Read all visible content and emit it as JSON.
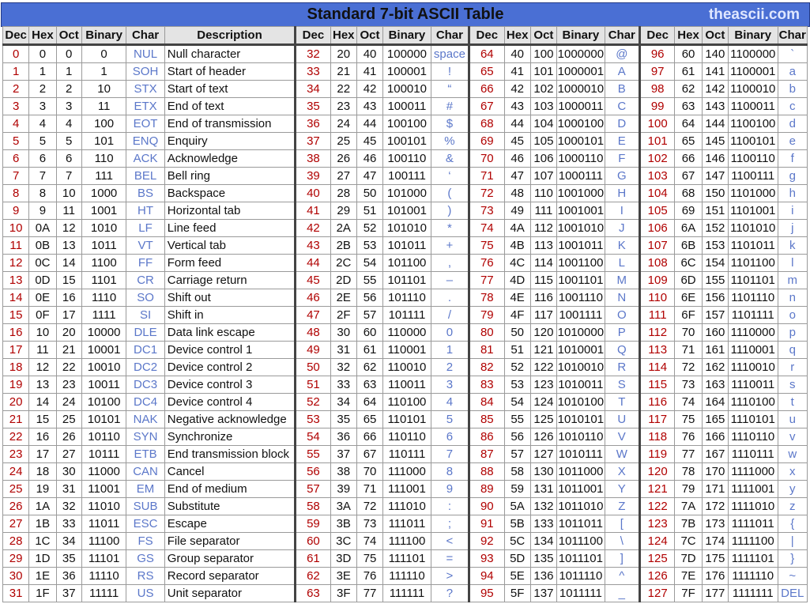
{
  "title": "Standard 7-bit ASCII Table",
  "site": "theascii.com",
  "headers": {
    "dec": "Dec",
    "hex": "Hex",
    "oct": "Oct",
    "binary": "Binary",
    "char": "Char",
    "description": "Description"
  },
  "colors": {
    "banner": "#4a6fd4",
    "dec": "#b00000",
    "char": "#5b77c9",
    "header_bg": "#e4e4e4"
  },
  "rows": [
    [
      [
        "0",
        "0",
        "0",
        "0",
        "NUL",
        "Null character"
      ],
      [
        "32",
        "20",
        "40",
        "100000",
        "space"
      ],
      [
        "64",
        "40",
        "100",
        "1000000",
        "@"
      ],
      [
        "96",
        "60",
        "140",
        "1100000",
        "`"
      ]
    ],
    [
      [
        "1",
        "1",
        "1",
        "1",
        "SOH",
        "Start of header"
      ],
      [
        "33",
        "21",
        "41",
        "100001",
        "!"
      ],
      [
        "65",
        "41",
        "101",
        "1000001",
        "A"
      ],
      [
        "97",
        "61",
        "141",
        "1100001",
        "a"
      ]
    ],
    [
      [
        "2",
        "2",
        "2",
        "10",
        "STX",
        "Start of text"
      ],
      [
        "34",
        "22",
        "42",
        "100010",
        "“"
      ],
      [
        "66",
        "42",
        "102",
        "1000010",
        "B"
      ],
      [
        "98",
        "62",
        "142",
        "1100010",
        "b"
      ]
    ],
    [
      [
        "3",
        "3",
        "3",
        "11",
        "ETX",
        "End of text"
      ],
      [
        "35",
        "23",
        "43",
        "100011",
        "#"
      ],
      [
        "67",
        "43",
        "103",
        "1000011",
        "C"
      ],
      [
        "99",
        "63",
        "143",
        "1100011",
        "c"
      ]
    ],
    [
      [
        "4",
        "4",
        "4",
        "100",
        "EOT",
        "End of transmission"
      ],
      [
        "36",
        "24",
        "44",
        "100100",
        "$"
      ],
      [
        "68",
        "44",
        "104",
        "1000100",
        "D"
      ],
      [
        "100",
        "64",
        "144",
        "1100100",
        "d"
      ]
    ],
    [
      [
        "5",
        "5",
        "5",
        "101",
        "ENQ",
        "Enquiry"
      ],
      [
        "37",
        "25",
        "45",
        "100101",
        "%"
      ],
      [
        "69",
        "45",
        "105",
        "1000101",
        "E"
      ],
      [
        "101",
        "65",
        "145",
        "1100101",
        "e"
      ]
    ],
    [
      [
        "6",
        "6",
        "6",
        "110",
        "ACK",
        "Acknowledge"
      ],
      [
        "38",
        "26",
        "46",
        "100110",
        "&"
      ],
      [
        "70",
        "46",
        "106",
        "1000110",
        "F"
      ],
      [
        "102",
        "66",
        "146",
        "1100110",
        "f"
      ]
    ],
    [
      [
        "7",
        "7",
        "7",
        "111",
        "BEL",
        "Bell ring"
      ],
      [
        "39",
        "27",
        "47",
        "100111",
        "‘"
      ],
      [
        "71",
        "47",
        "107",
        "1000111",
        "G"
      ],
      [
        "103",
        "67",
        "147",
        "1100111",
        "g"
      ]
    ],
    [
      [
        "8",
        "8",
        "10",
        "1000",
        "BS",
        "Backspace"
      ],
      [
        "40",
        "28",
        "50",
        "101000",
        "("
      ],
      [
        "72",
        "48",
        "110",
        "1001000",
        "H"
      ],
      [
        "104",
        "68",
        "150",
        "1101000",
        "h"
      ]
    ],
    [
      [
        "9",
        "9",
        "11",
        "1001",
        "HT",
        "Horizontal tab"
      ],
      [
        "41",
        "29",
        "51",
        "101001",
        ")"
      ],
      [
        "73",
        "49",
        "111",
        "1001001",
        "I"
      ],
      [
        "105",
        "69",
        "151",
        "1101001",
        "i"
      ]
    ],
    [
      [
        "10",
        "0A",
        "12",
        "1010",
        "LF",
        "Line feed"
      ],
      [
        "42",
        "2A",
        "52",
        "101010",
        "*"
      ],
      [
        "74",
        "4A",
        "112",
        "1001010",
        "J"
      ],
      [
        "106",
        "6A",
        "152",
        "1101010",
        "j"
      ]
    ],
    [
      [
        "11",
        "0B",
        "13",
        "1011",
        "VT",
        "Vertical tab"
      ],
      [
        "43",
        "2B",
        "53",
        "101011",
        "+"
      ],
      [
        "75",
        "4B",
        "113",
        "1001011",
        "K"
      ],
      [
        "107",
        "6B",
        "153",
        "1101011",
        "k"
      ]
    ],
    [
      [
        "12",
        "0C",
        "14",
        "1100",
        "FF",
        "Form feed"
      ],
      [
        "44",
        "2C",
        "54",
        "101100",
        ","
      ],
      [
        "76",
        "4C",
        "114",
        "1001100",
        "L"
      ],
      [
        "108",
        "6C",
        "154",
        "1101100",
        "l"
      ]
    ],
    [
      [
        "13",
        "0D",
        "15",
        "1101",
        "CR",
        "Carriage return"
      ],
      [
        "45",
        "2D",
        "55",
        "101101",
        "–"
      ],
      [
        "77",
        "4D",
        "115",
        "1001101",
        "M"
      ],
      [
        "109",
        "6D",
        "155",
        "1101101",
        "m"
      ]
    ],
    [
      [
        "14",
        "0E",
        "16",
        "1110",
        "SO",
        "Shift out"
      ],
      [
        "46",
        "2E",
        "56",
        "101110",
        "."
      ],
      [
        "78",
        "4E",
        "116",
        "1001110",
        "N"
      ],
      [
        "110",
        "6E",
        "156",
        "1101110",
        "n"
      ]
    ],
    [
      [
        "15",
        "0F",
        "17",
        "1111",
        "SI",
        "Shift in"
      ],
      [
        "47",
        "2F",
        "57",
        "101111",
        "/"
      ],
      [
        "79",
        "4F",
        "117",
        "1001111",
        "O"
      ],
      [
        "111",
        "6F",
        "157",
        "1101111",
        "o"
      ]
    ],
    [
      [
        "16",
        "10",
        "20",
        "10000",
        "DLE",
        "Data link escape"
      ],
      [
        "48",
        "30",
        "60",
        "110000",
        "0"
      ],
      [
        "80",
        "50",
        "120",
        "1010000",
        "P"
      ],
      [
        "112",
        "70",
        "160",
        "1110000",
        "p"
      ]
    ],
    [
      [
        "17",
        "11",
        "21",
        "10001",
        "DC1",
        "Device control 1"
      ],
      [
        "49",
        "31",
        "61",
        "110001",
        "1"
      ],
      [
        "81",
        "51",
        "121",
        "1010001",
        "Q"
      ],
      [
        "113",
        "71",
        "161",
        "1110001",
        "q"
      ]
    ],
    [
      [
        "18",
        "12",
        "22",
        "10010",
        "DC2",
        "Device control 2"
      ],
      [
        "50",
        "32",
        "62",
        "110010",
        "2"
      ],
      [
        "82",
        "52",
        "122",
        "1010010",
        "R"
      ],
      [
        "114",
        "72",
        "162",
        "1110010",
        "r"
      ]
    ],
    [
      [
        "19",
        "13",
        "23",
        "10011",
        "DC3",
        "Device control 3"
      ],
      [
        "51",
        "33",
        "63",
        "110011",
        "3"
      ],
      [
        "83",
        "53",
        "123",
        "1010011",
        "S"
      ],
      [
        "115",
        "73",
        "163",
        "1110011",
        "s"
      ]
    ],
    [
      [
        "20",
        "14",
        "24",
        "10100",
        "DC4",
        "Device control 4"
      ],
      [
        "52",
        "34",
        "64",
        "110100",
        "4"
      ],
      [
        "84",
        "54",
        "124",
        "1010100",
        "T"
      ],
      [
        "116",
        "74",
        "164",
        "1110100",
        "t"
      ]
    ],
    [
      [
        "21",
        "15",
        "25",
        "10101",
        "NAK",
        "Negative acknowledge"
      ],
      [
        "53",
        "35",
        "65",
        "110101",
        "5"
      ],
      [
        "85",
        "55",
        "125",
        "1010101",
        "U"
      ],
      [
        "117",
        "75",
        "165",
        "1110101",
        "u"
      ]
    ],
    [
      [
        "22",
        "16",
        "26",
        "10110",
        "SYN",
        "Synchronize"
      ],
      [
        "54",
        "36",
        "66",
        "110110",
        "6"
      ],
      [
        "86",
        "56",
        "126",
        "1010110",
        "V"
      ],
      [
        "118",
        "76",
        "166",
        "1110110",
        "v"
      ]
    ],
    [
      [
        "23",
        "17",
        "27",
        "10111",
        "ETB",
        "End transmission block"
      ],
      [
        "55",
        "37",
        "67",
        "110111",
        "7"
      ],
      [
        "87",
        "57",
        "127",
        "1010111",
        "W"
      ],
      [
        "119",
        "77",
        "167",
        "1110111",
        "w"
      ]
    ],
    [
      [
        "24",
        "18",
        "30",
        "11000",
        "CAN",
        "Cancel"
      ],
      [
        "56",
        "38",
        "70",
        "111000",
        "8"
      ],
      [
        "88",
        "58",
        "130",
        "1011000",
        "X"
      ],
      [
        "120",
        "78",
        "170",
        "1111000",
        "x"
      ]
    ],
    [
      [
        "25",
        "19",
        "31",
        "11001",
        "EM",
        "End of medium"
      ],
      [
        "57",
        "39",
        "71",
        "111001",
        "9"
      ],
      [
        "89",
        "59",
        "131",
        "1011001",
        "Y"
      ],
      [
        "121",
        "79",
        "171",
        "1111001",
        "y"
      ]
    ],
    [
      [
        "26",
        "1A",
        "32",
        "11010",
        "SUB",
        "Substitute"
      ],
      [
        "58",
        "3A",
        "72",
        "111010",
        ":"
      ],
      [
        "90",
        "5A",
        "132",
        "1011010",
        "Z"
      ],
      [
        "122",
        "7A",
        "172",
        "1111010",
        "z"
      ]
    ],
    [
      [
        "27",
        "1B",
        "33",
        "11011",
        "ESC",
        "Escape"
      ],
      [
        "59",
        "3B",
        "73",
        "111011",
        ";"
      ],
      [
        "91",
        "5B",
        "133",
        "1011011",
        "["
      ],
      [
        "123",
        "7B",
        "173",
        "1111011",
        "{"
      ]
    ],
    [
      [
        "28",
        "1C",
        "34",
        "11100",
        "FS",
        "File separator"
      ],
      [
        "60",
        "3C",
        "74",
        "111100",
        "<"
      ],
      [
        "92",
        "5C",
        "134",
        "1011100",
        "\\"
      ],
      [
        "124",
        "7C",
        "174",
        "1111100",
        "|"
      ]
    ],
    [
      [
        "29",
        "1D",
        "35",
        "11101",
        "GS",
        "Group separator"
      ],
      [
        "61",
        "3D",
        "75",
        "111101",
        "="
      ],
      [
        "93",
        "5D",
        "135",
        "1011101",
        "]"
      ],
      [
        "125",
        "7D",
        "175",
        "1111101",
        "}"
      ]
    ],
    [
      [
        "30",
        "1E",
        "36",
        "11110",
        "RS",
        "Record separator"
      ],
      [
        "62",
        "3E",
        "76",
        "111110",
        ">"
      ],
      [
        "94",
        "5E",
        "136",
        "1011110",
        "^"
      ],
      [
        "126",
        "7E",
        "176",
        "1111110",
        "~"
      ]
    ],
    [
      [
        "31",
        "1F",
        "37",
        "11111",
        "US",
        "Unit separator"
      ],
      [
        "63",
        "3F",
        "77",
        "111111",
        "?"
      ],
      [
        "95",
        "5F",
        "137",
        "1011111",
        "_"
      ],
      [
        "127",
        "7F",
        "177",
        "1111111",
        "DEL"
      ]
    ]
  ]
}
